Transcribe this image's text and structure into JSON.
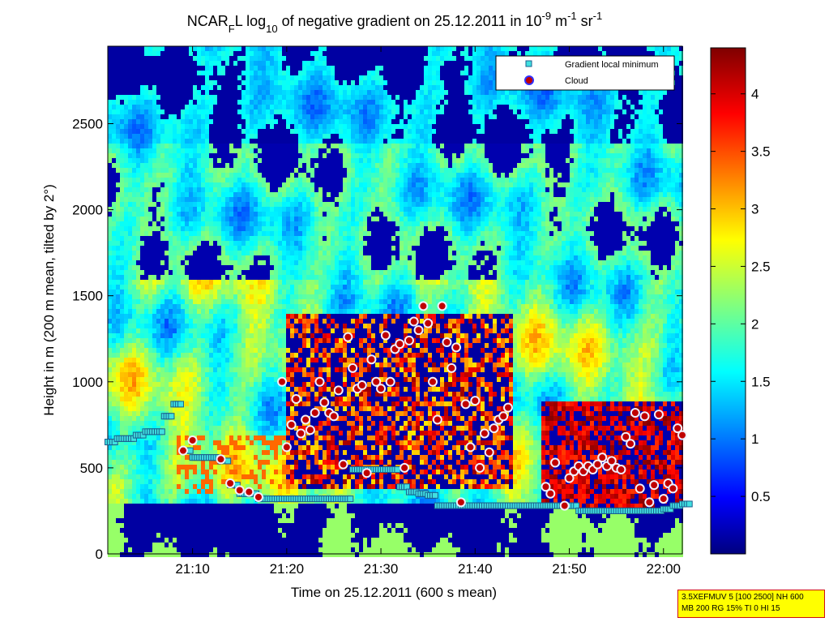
{
  "chart_data": {
    "type": "heatmap",
    "title_parts": {
      "prefix": "NCAR",
      "sub1": "F",
      "mid": "L log",
      "sub2": "10",
      "mid2": " of negative gradient on 25.12.2011 in 10",
      "sup1": "-9",
      "mid3": " m",
      "sup2": "-1",
      "mid4": " sr",
      "sup3": "-1"
    },
    "xlabel": "Time on 25.12.2011 (600 s mean)",
    "ylabel": "Height in m (200 m mean, tilted by 2°)",
    "x_ticks": [
      "21:10",
      "21:20",
      "21:30",
      "21:40",
      "21:50",
      "22:00"
    ],
    "x_tick_minutes": [
      10,
      20,
      30,
      40,
      50,
      60
    ],
    "xlim_minutes": [
      1,
      62
    ],
    "y_ticks": [
      0,
      500,
      1000,
      1500,
      2000,
      2500
    ],
    "ylim": [
      0,
      2950
    ],
    "colorbar": {
      "ticks": [
        "0.5",
        "1",
        "1.5",
        "2",
        "2.5",
        "3",
        "3.5",
        "4"
      ],
      "tick_values": [
        0.5,
        1,
        1.5,
        2,
        2.5,
        3,
        3.5,
        4
      ],
      "range": [
        0,
        4.4
      ],
      "colormap": "jet"
    },
    "legend": {
      "placement": "top-right",
      "entries": [
        {
          "label": "Gradient local minimum",
          "marker": "square",
          "color": "#40e0e0"
        },
        {
          "label": "Cloud",
          "marker": "circle",
          "color": "#c00000",
          "edge": "#3030ff"
        }
      ]
    },
    "series": [
      {
        "name": "Gradient local minimum",
        "x_minutes": [
          1,
          2,
          3,
          4,
          5,
          6,
          7,
          8,
          9,
          10,
          11,
          12,
          13,
          14,
          15,
          16,
          17,
          18,
          19,
          20,
          21,
          22,
          23,
          24,
          25,
          26,
          27,
          28,
          29,
          30,
          31,
          32,
          33,
          34,
          35,
          36,
          37,
          38,
          39,
          40,
          41,
          42,
          43,
          44,
          45,
          46,
          47,
          48,
          49,
          50,
          51,
          52,
          53,
          54,
          55,
          56,
          57,
          58,
          59,
          60,
          61,
          62
        ],
        "y": [
          650,
          670,
          670,
          690,
          710,
          710,
          800,
          870,
          600,
          560,
          560,
          560,
          540,
          400,
          350,
          350,
          320,
          320,
          320,
          320,
          320,
          320,
          320,
          320,
          320,
          320,
          490,
          490,
          490,
          490,
          490,
          390,
          360,
          350,
          340,
          280,
          280,
          280,
          280,
          280,
          280,
          280,
          280,
          280,
          280,
          280,
          280,
          280,
          280,
          280,
          250,
          250,
          250,
          250,
          250,
          250,
          250,
          250,
          250,
          260,
          280,
          290
        ]
      },
      {
        "name": "Cloud",
        "x_minutes": [
          9,
          10,
          13,
          14,
          15,
          16,
          17,
          19.5,
          20,
          20.5,
          21,
          21.5,
          22,
          22.5,
          23,
          23.5,
          24,
          24.5,
          25,
          25.5,
          26,
          26.5,
          27,
          27.5,
          28,
          28.5,
          29,
          29.5,
          30,
          30.5,
          31,
          31.5,
          32,
          32.5,
          33,
          33.5,
          34,
          34.5,
          35,
          35.5,
          36,
          36.5,
          37,
          37.5,
          38,
          38.5,
          39,
          39.5,
          40,
          40.5,
          41,
          41.5,
          42,
          42.5,
          43,
          43.5,
          47.5,
          48,
          48.5,
          49.5,
          50,
          50.5,
          51,
          51.5,
          52,
          52.5,
          53,
          53.5,
          54,
          54.5,
          55,
          55.5,
          56,
          56.5,
          57,
          57.5,
          58,
          58.5,
          59,
          59.5,
          60,
          60.5,
          61,
          61.5,
          62
        ],
        "y": [
          600,
          660,
          550,
          410,
          370,
          360,
          330,
          1000,
          620,
          750,
          900,
          700,
          780,
          720,
          820,
          1000,
          880,
          820,
          800,
          950,
          520,
          1260,
          1080,
          960,
          980,
          470,
          1130,
          1000,
          960,
          1270,
          1000,
          1190,
          1220,
          500,
          1240,
          1350,
          1300,
          1440,
          1340,
          1000,
          780,
          1440,
          1230,
          1080,
          1200,
          300,
          870,
          620,
          890,
          500,
          700,
          590,
          730,
          780,
          800,
          850,
          390,
          350,
          530,
          280,
          440,
          480,
          510,
          480,
          510,
          490,
          520,
          560,
          510,
          540,
          500,
          490,
          680,
          640,
          820,
          380,
          800,
          300,
          400,
          810,
          320,
          410,
          380,
          730,
          690
        ]
      }
    ],
    "info_box_lines": [
      "3.5XEFMUV 5 [100 2500] NH 600",
      "MB 200 RG 15% TI 0 HI 15"
    ]
  }
}
